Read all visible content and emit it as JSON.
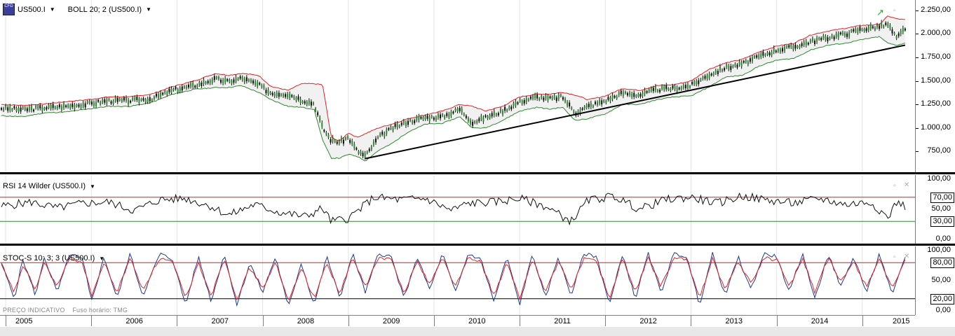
{
  "toolbar": {
    "symbol": "US500.I",
    "symbol_icon": "cfd-logo-icon",
    "logo_text": "CFD",
    "overlay": "BOLL 20; 2 (US500.I)",
    "dropdown_icon": "triangle-down-icon"
  },
  "panes": {
    "rsi_title": "RSI 14 Wilder (US500.I)",
    "stoch_title": "STOC-S 10; 3; 3 (US500.I)"
  },
  "footer": {
    "note": "PREÇO INDICATIVO",
    "timezone": "Fuso horário: TMG"
  },
  "colors": {
    "upper_band": "#e32222",
    "lower_band": "#2e8b2e",
    "price": "#111111",
    "rsi": "#111111",
    "stoch_k": "#1d3a8a",
    "stoch_d": "#e32222",
    "trendline": "#000000"
  },
  "chart_data": [
    {
      "type": "line",
      "title": "",
      "series_kind": "candlestick with Bollinger Bands and trendline",
      "y_ticks": [
        "2.250,00",
        "2.000,00",
        "1.750,00",
        "1.500,00",
        "1.250,00",
        "1.000,00",
        "750,00"
      ],
      "ylim": [
        560,
        2330
      ],
      "x_ticks": [
        "2005",
        "2006",
        "2007",
        "2008",
        "2009",
        "2010",
        "2011",
        "2012",
        "2013",
        "2014",
        "2015"
      ],
      "xlim": [
        2004.95,
        2015.55
      ],
      "x": [
        2004.95,
        2005.2,
        2005.45,
        2005.7,
        2005.95,
        2006.2,
        2006.45,
        2006.7,
        2006.95,
        2007.2,
        2007.45,
        2007.6,
        2007.75,
        2007.95,
        2008.1,
        2008.3,
        2008.45,
        2008.6,
        2008.7,
        2008.8,
        2008.9,
        2009.0,
        2009.1,
        2009.2,
        2009.35,
        2009.5,
        2009.7,
        2009.9,
        2010.1,
        2010.3,
        2010.45,
        2010.6,
        2010.8,
        2011.0,
        2011.2,
        2011.35,
        2011.5,
        2011.65,
        2011.8,
        2012.0,
        2012.2,
        2012.4,
        2012.6,
        2012.8,
        2013.0,
        2013.2,
        2013.4,
        2013.6,
        2013.8,
        2014.0,
        2014.2,
        2014.4,
        2014.6,
        2014.8,
        2015.0,
        2015.2,
        2015.3,
        2015.4,
        2015.5
      ],
      "series": [
        {
          "name": "",
          "role": "price",
          "values": [
            1210,
            1195,
            1215,
            1230,
            1255,
            1290,
            1290,
            1310,
            1400,
            1450,
            1520,
            1490,
            1530,
            1460,
            1370,
            1360,
            1300,
            1260,
            1000,
            870,
            850,
            900,
            760,
            700,
            900,
            990,
            1070,
            1110,
            1120,
            1200,
            1060,
            1110,
            1180,
            1280,
            1330,
            1310,
            1330,
            1160,
            1230,
            1290,
            1370,
            1350,
            1410,
            1420,
            1450,
            1560,
            1640,
            1680,
            1760,
            1830,
            1860,
            1920,
            1960,
            2000,
            2050,
            2080,
            2100,
            1950,
            2060
          ]
        },
        {
          "name": "",
          "role": "upper_band",
          "values": [
            1250,
            1240,
            1255,
            1280,
            1300,
            1330,
            1330,
            1360,
            1440,
            1500,
            1580,
            1560,
            1580,
            1560,
            1440,
            1400,
            1470,
            1470,
            1460,
            900,
            860,
            950,
            900,
            940,
            1000,
            1040,
            1100,
            1140,
            1180,
            1250,
            1230,
            1180,
            1230,
            1330,
            1360,
            1360,
            1380,
            1350,
            1300,
            1340,
            1420,
            1400,
            1450,
            1460,
            1500,
            1620,
            1690,
            1730,
            1810,
            1870,
            1900,
            1990,
            2030,
            2060,
            2090,
            2100,
            2190,
            2160,
            2150
          ]
        },
        {
          "name": "",
          "role": "lower_band",
          "values": [
            1130,
            1120,
            1160,
            1170,
            1200,
            1230,
            1230,
            1270,
            1360,
            1410,
            1430,
            1430,
            1450,
            1380,
            1300,
            1230,
            1220,
            1200,
            870,
            680,
            680,
            720,
            700,
            650,
            760,
            830,
            960,
            1040,
            1050,
            1120,
            1000,
            1000,
            1080,
            1180,
            1220,
            1200,
            1220,
            1080,
            1100,
            1150,
            1250,
            1250,
            1300,
            1330,
            1340,
            1430,
            1540,
            1560,
            1660,
            1720,
            1740,
            1830,
            1880,
            1900,
            1940,
            1970,
            1900,
            1880,
            1900
          ]
        },
        {
          "name": "",
          "role": "trendline",
          "x": [
            2009.2,
            2015.5
          ],
          "values": [
            675,
            1880
          ]
        }
      ]
    },
    {
      "type": "line",
      "title": "RSI 14 Wilder (US500.I)",
      "y_ticks": [
        "100,00",
        "70,00",
        "50,00",
        "30,00",
        "0,00"
      ],
      "ylim": [
        0,
        100
      ],
      "reference_lines": [
        70,
        30
      ],
      "highlighted_levels": [
        "70,00",
        "30,00"
      ],
      "x": [
        2004.95,
        2005.3,
        2005.6,
        2005.9,
        2006.2,
        2006.5,
        2006.8,
        2007.1,
        2007.4,
        2007.6,
        2007.9,
        2008.2,
        2008.5,
        2008.7,
        2008.8,
        2009.0,
        2009.3,
        2009.6,
        2009.9,
        2010.2,
        2010.4,
        2010.7,
        2011.0,
        2011.3,
        2011.6,
        2011.8,
        2012.1,
        2012.4,
        2012.7,
        2013.0,
        2013.3,
        2013.6,
        2013.9,
        2014.2,
        2014.5,
        2014.8,
        2015.1,
        2015.3,
        2015.4,
        2015.5
      ],
      "series": [
        {
          "name": "",
          "role": "rsi",
          "values": [
            55,
            62,
            52,
            60,
            62,
            48,
            66,
            68,
            55,
            40,
            58,
            45,
            38,
            52,
            30,
            35,
            70,
            66,
            68,
            48,
            60,
            62,
            68,
            55,
            30,
            65,
            72,
            50,
            66,
            70,
            60,
            72,
            65,
            60,
            68,
            58,
            62,
            36,
            62,
            55
          ]
        }
      ]
    },
    {
      "type": "line",
      "title": "STOC-S 10; 3; 3 (US500.I)",
      "y_ticks": [
        "100,00",
        "80,00",
        "50,00",
        "20,00",
        "0,00"
      ],
      "ylim": [
        0,
        100
      ],
      "reference_lines": [
        80,
        20
      ],
      "highlighted_levels": [
        "80,00",
        "20,00"
      ],
      "x": [
        2004.95,
        2005.1,
        2005.2,
        2005.35,
        2005.45,
        2005.6,
        2005.75,
        2005.9,
        2006.0,
        2006.15,
        2006.3,
        2006.45,
        2006.6,
        2006.8,
        2006.95,
        2007.1,
        2007.25,
        2007.4,
        2007.55,
        2007.7,
        2007.85,
        2008.0,
        2008.15,
        2008.3,
        2008.45,
        2008.6,
        2008.75,
        2008.9,
        2009.05,
        2009.2,
        2009.35,
        2009.5,
        2009.65,
        2009.8,
        2009.95,
        2010.1,
        2010.25,
        2010.4,
        2010.55,
        2010.7,
        2010.85,
        2011.0,
        2011.15,
        2011.3,
        2011.45,
        2011.6,
        2011.75,
        2011.9,
        2012.05,
        2012.2,
        2012.35,
        2012.5,
        2012.65,
        2012.8,
        2012.95,
        2013.1,
        2013.25,
        2013.4,
        2013.55,
        2013.7,
        2013.85,
        2014.0,
        2014.15,
        2014.3,
        2014.45,
        2014.6,
        2014.75,
        2014.9,
        2015.05,
        2015.2,
        2015.35,
        2015.5
      ],
      "series": [
        {
          "name": "",
          "role": "%K",
          "values": [
            80,
            20,
            85,
            25,
            90,
            30,
            95,
            85,
            15,
            90,
            20,
            95,
            25,
            95,
            85,
            10,
            90,
            15,
            95,
            10,
            80,
            30,
            90,
            5,
            80,
            10,
            90,
            20,
            95,
            30,
            95,
            90,
            20,
            90,
            35,
            95,
            30,
            95,
            85,
            15,
            90,
            10,
            95,
            20,
            90,
            25,
            95,
            90,
            10,
            95,
            20,
            95,
            30,
            95,
            90,
            10,
            95,
            25,
            90,
            35,
            95,
            90,
            30,
            95,
            20,
            95,
            40,
            90,
            30,
            95,
            25,
            90
          ]
        },
        {
          "name": "",
          "role": "%D",
          "values": [
            75,
            30,
            75,
            35,
            80,
            40,
            88,
            80,
            25,
            80,
            30,
            88,
            35,
            88,
            80,
            20,
            80,
            25,
            88,
            20,
            72,
            38,
            80,
            15,
            72,
            20,
            80,
            28,
            88,
            40,
            88,
            85,
            30,
            82,
            45,
            88,
            40,
            88,
            80,
            25,
            80,
            20,
            88,
            30,
            82,
            35,
            88,
            82,
            20,
            88,
            30,
            88,
            40,
            88,
            85,
            20,
            88,
            35,
            82,
            45,
            88,
            85,
            40,
            88,
            30,
            88,
            48,
            82,
            40,
            88,
            35,
            82
          ]
        }
      ]
    }
  ]
}
